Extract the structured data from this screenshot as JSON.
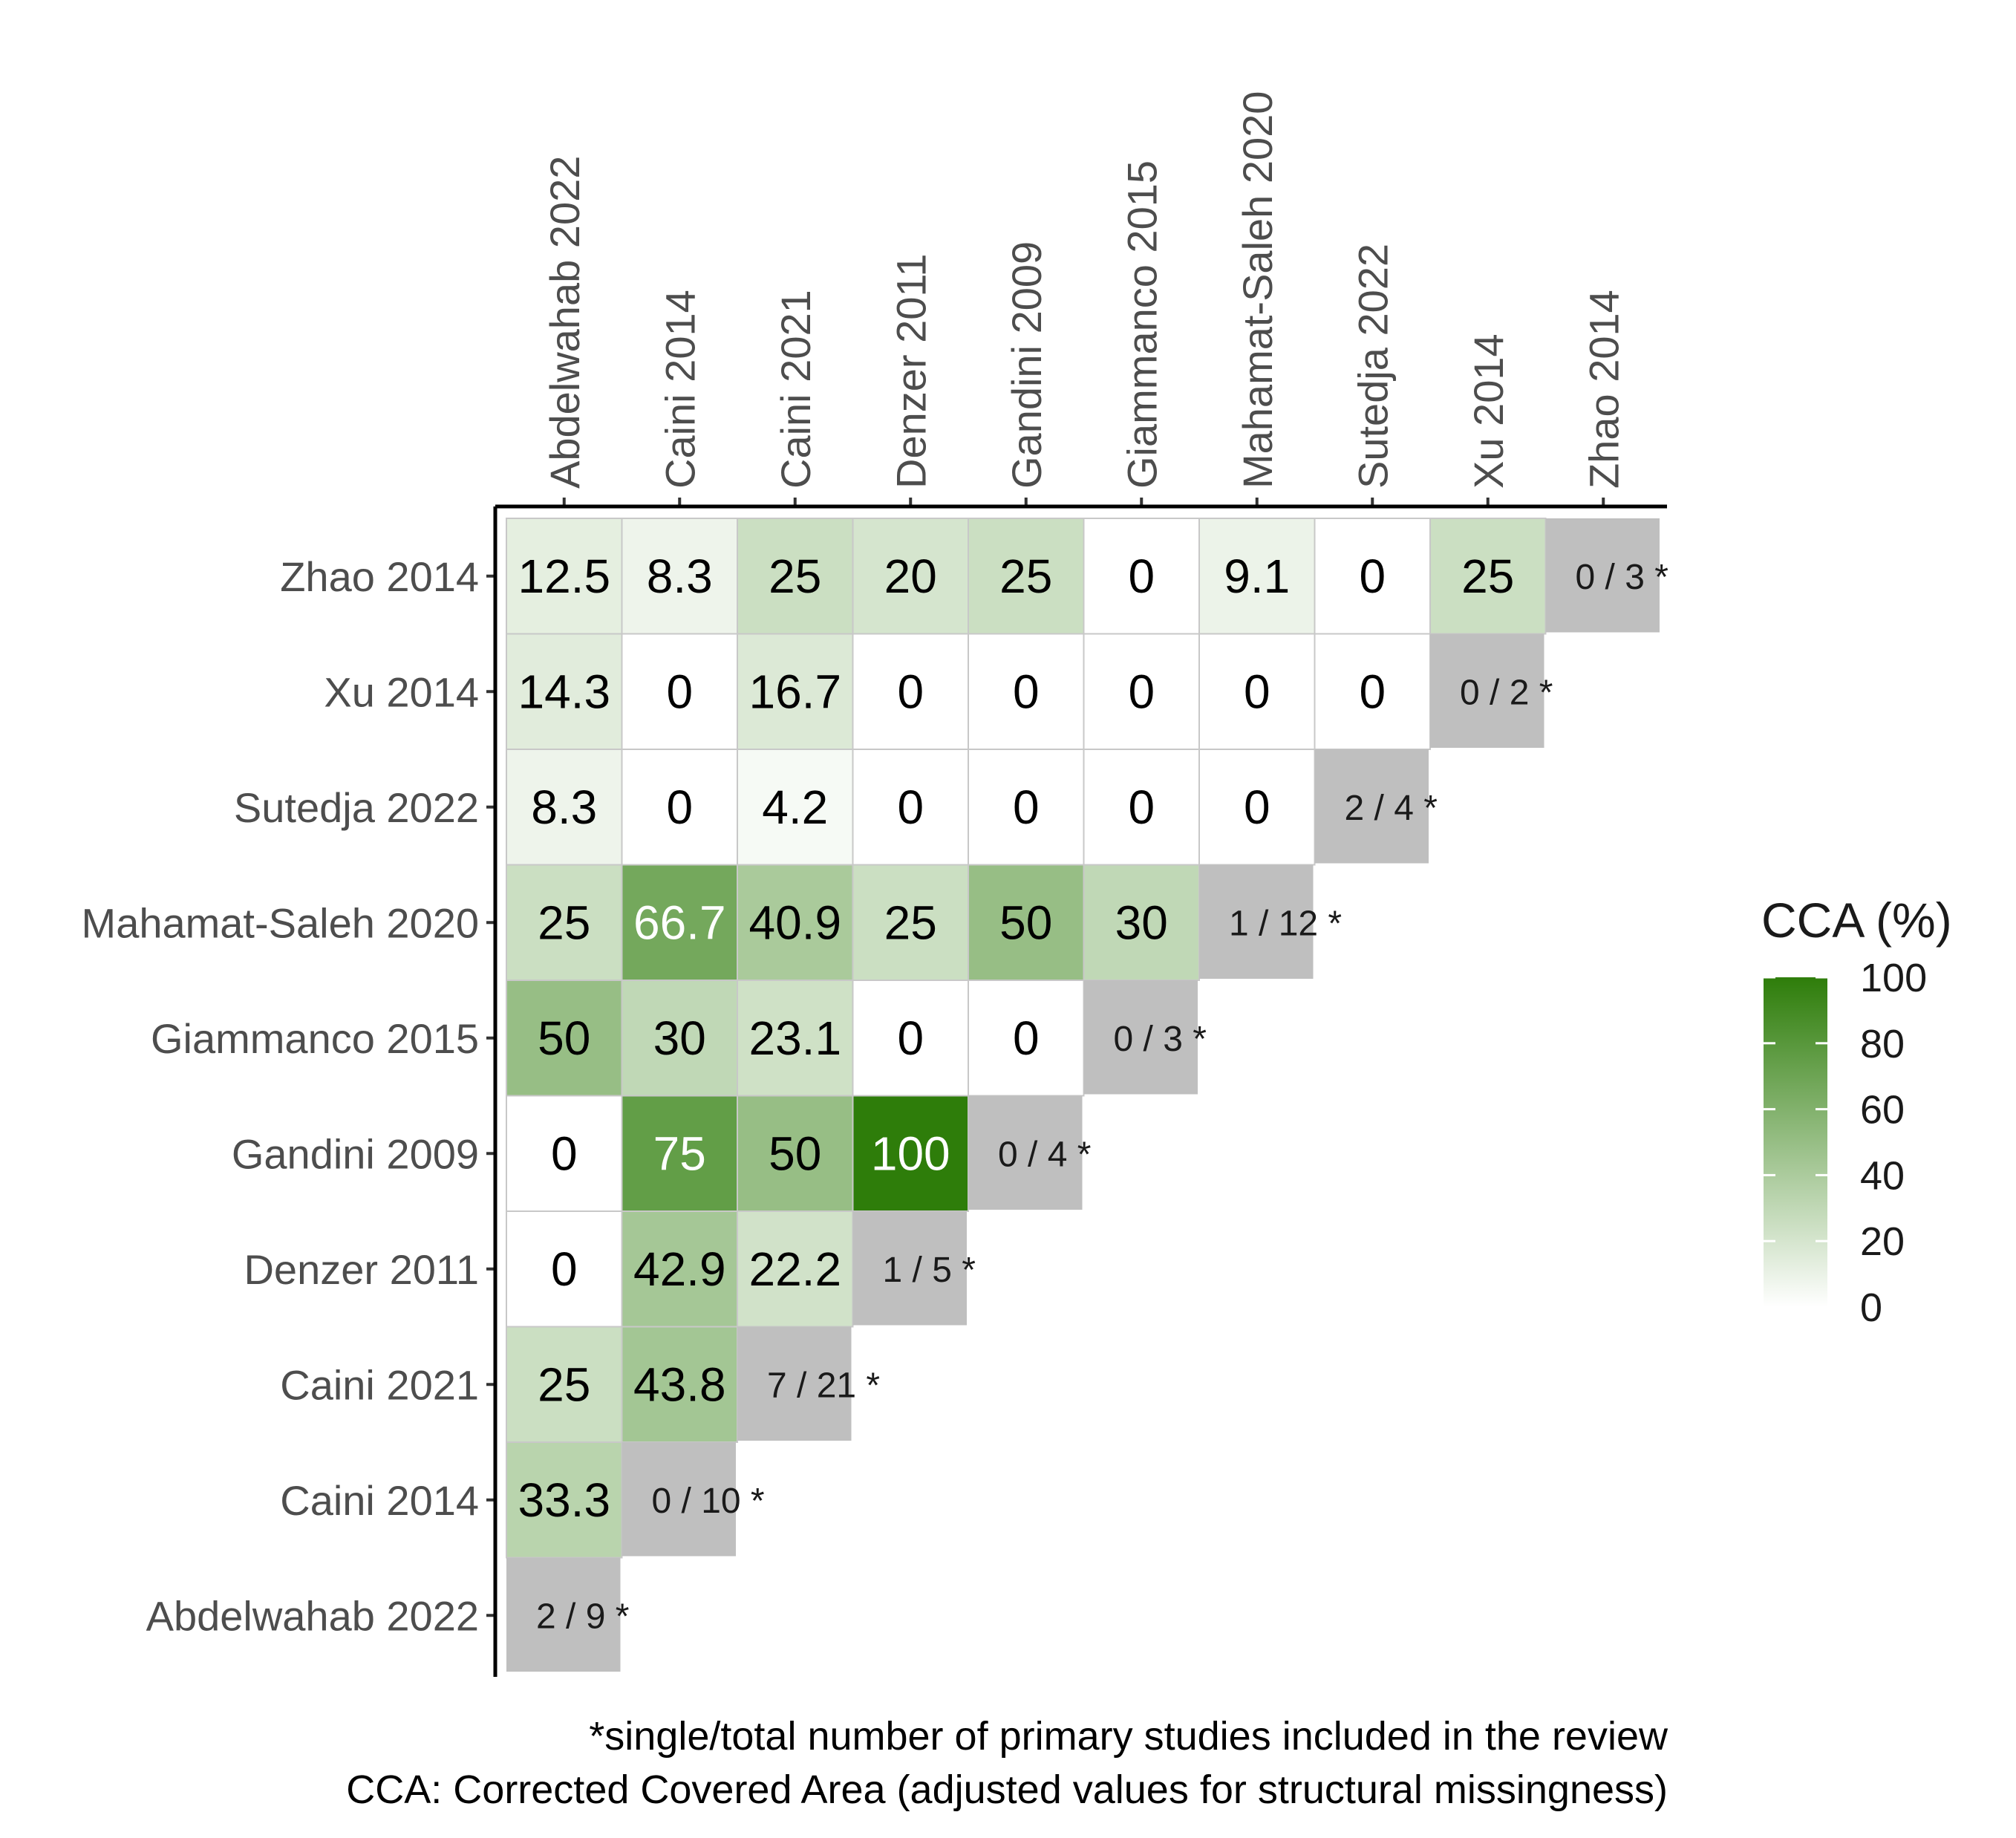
{
  "chart_data": {
    "type": "heatmap",
    "title": "",
    "xlabel": "",
    "ylabel": "",
    "columns": [
      "Abdelwahab 2022",
      "Caini 2014",
      "Caini 2021",
      "Denzer 2011",
      "Gandini 2009",
      "Giammanco 2015",
      "Mahamat-Saleh 2020",
      "Sutedja 2022",
      "Xu 2014",
      "Zhao 2014"
    ],
    "rows": [
      "Zhao 2014",
      "Xu 2014",
      "Sutedja 2022",
      "Mahamat-Saleh 2020",
      "Giammanco 2015",
      "Gandini 2009",
      "Denzer 2011",
      "Caini 2021",
      "Caini 2014",
      "Abdelwahab 2022"
    ],
    "values": [
      [
        "12.5",
        "8.3",
        "25",
        "20",
        "25",
        "0",
        "9.1",
        "0",
        "25",
        null
      ],
      [
        "14.3",
        "0",
        "16.7",
        "0",
        "0",
        "0",
        "0",
        "0",
        null,
        null
      ],
      [
        "8.3",
        "0",
        "4.2",
        "0",
        "0",
        "0",
        "0",
        null,
        null,
        null
      ],
      [
        "25",
        "66.7",
        "40.9",
        "25",
        "50",
        "30",
        null,
        null,
        null,
        null
      ],
      [
        "50",
        "30",
        "23.1",
        "0",
        "0",
        null,
        null,
        null,
        null,
        null
      ],
      [
        "0",
        "75",
        "50",
        "100",
        null,
        null,
        null,
        null,
        null,
        null
      ],
      [
        "0",
        "42.9",
        "22.2",
        null,
        null,
        null,
        null,
        null,
        null,
        null
      ],
      [
        "25",
        "43.8",
        null,
        null,
        null,
        null,
        null,
        null,
        null,
        null
      ],
      [
        "33.3",
        null,
        null,
        null,
        null,
        null,
        null,
        null,
        null,
        null
      ],
      [
        null,
        null,
        null,
        null,
        null,
        null,
        null,
        null,
        null,
        null
      ]
    ],
    "diagonal": [
      {
        "study": "Zhao 2014",
        "label": "0 / 3 *"
      },
      {
        "study": "Xu 2014",
        "label": "0 / 2 *"
      },
      {
        "study": "Sutedja 2022",
        "label": "2 / 4 *"
      },
      {
        "study": "Mahamat-Saleh 2020",
        "label": "1 / 12 *"
      },
      {
        "study": "Giammanco 2015",
        "label": "0 / 3 *"
      },
      {
        "study": "Gandini 2009",
        "label": "0 / 4 *"
      },
      {
        "study": "Denzer 2011",
        "label": "1 / 5 *"
      },
      {
        "study": "Caini 2021",
        "label": "7 / 21 *"
      },
      {
        "study": "Caini 2014",
        "label": "0 / 10 *"
      },
      {
        "study": "Abdelwahab 2022",
        "label": "2 / 9 *"
      }
    ],
    "legend": {
      "title": "CCA (%)",
      "range": [
        0,
        100
      ],
      "ticks": [
        "0",
        "20",
        "40",
        "60",
        "80",
        "100"
      ],
      "placement": "right"
    },
    "colors": {
      "low": "#ffffff",
      "high": "#2e7d0a",
      "diagonal": "#bfbfbf",
      "grid": "#c8c8c8",
      "axis": "#000000"
    },
    "caption": [
      "*single/total number of primary studies included in the review",
      "CCA: Corrected Covered Area (adjusted values for structural missingness)"
    ]
  }
}
